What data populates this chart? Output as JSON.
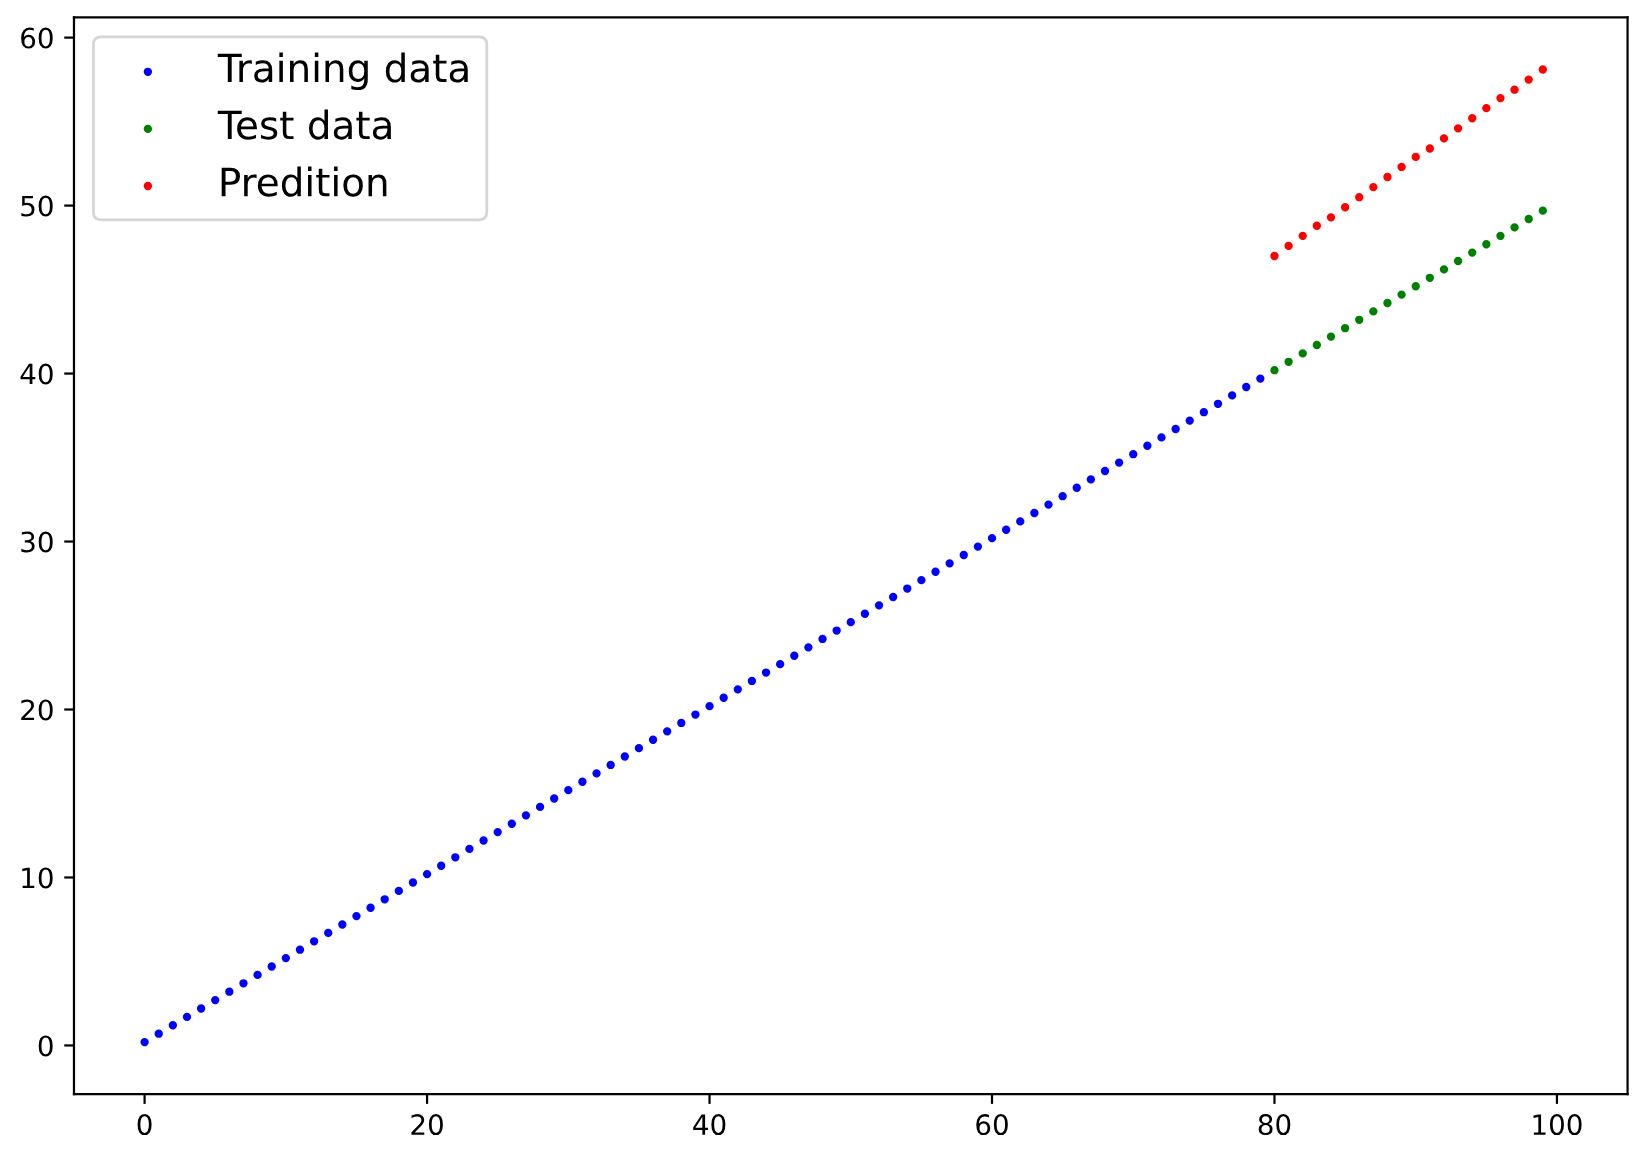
{
  "chart_data": {
    "type": "scatter",
    "legend": "top left",
    "marker": "circle",
    "grid": false,
    "xlim": [
      -5,
      105
    ],
    "ylim": [
      -2.9,
      61.2
    ],
    "xticks": [
      0,
      20,
      40,
      60,
      80,
      100
    ],
    "yticks": [
      0,
      10,
      20,
      30,
      40,
      50,
      60
    ],
    "series": [
      {
        "name": "Training data",
        "color": "#0000ff",
        "x": [
          0,
          1,
          2,
          3,
          4,
          5,
          6,
          7,
          8,
          9,
          10,
          11,
          12,
          13,
          14,
          15,
          16,
          17,
          18,
          19,
          20,
          21,
          22,
          23,
          24,
          25,
          26,
          27,
          28,
          29,
          30,
          31,
          32,
          33,
          34,
          35,
          36,
          37,
          38,
          39,
          40,
          41,
          42,
          43,
          44,
          45,
          46,
          47,
          48,
          49,
          50,
          51,
          52,
          53,
          54,
          55,
          56,
          57,
          58,
          59,
          60,
          61,
          62,
          63,
          64,
          65,
          66,
          67,
          68,
          69,
          70,
          71,
          72,
          73,
          74,
          75,
          76,
          77,
          78,
          79
        ],
        "values": [
          0.2,
          0.7,
          1.2,
          1.7,
          2.2,
          2.7,
          3.2,
          3.7,
          4.2,
          4.7,
          5.2,
          5.7,
          6.2,
          6.7,
          7.2,
          7.7,
          8.2,
          8.7,
          9.2,
          9.7,
          10.2,
          10.7,
          11.2,
          11.7,
          12.2,
          12.7,
          13.2,
          13.7,
          14.2,
          14.7,
          15.2,
          15.7,
          16.2,
          16.7,
          17.2,
          17.7,
          18.2,
          18.7,
          19.2,
          19.7,
          20.2,
          20.7,
          21.2,
          21.7,
          22.2,
          22.7,
          23.2,
          23.7,
          24.2,
          24.7,
          25.2,
          25.7,
          26.2,
          26.7,
          27.2,
          27.7,
          28.2,
          28.7,
          29.2,
          29.7,
          30.2,
          30.7,
          31.2,
          31.7,
          32.2,
          32.7,
          33.2,
          33.7,
          34.2,
          34.7,
          35.2,
          35.7,
          36.2,
          36.7,
          37.2,
          37.7,
          38.2,
          38.7,
          39.2,
          39.7
        ]
      },
      {
        "name": "Test data",
        "color": "#008000",
        "x": [
          80,
          81,
          82,
          83,
          84,
          85,
          86,
          87,
          88,
          89,
          90,
          91,
          92,
          93,
          94,
          95,
          96,
          97,
          98,
          99
        ],
        "values": [
          40.2,
          40.7,
          41.2,
          41.7,
          42.2,
          42.7,
          43.2,
          43.7,
          44.2,
          44.7,
          45.2,
          45.7,
          46.2,
          46.7,
          47.2,
          47.7,
          48.2,
          48.7,
          49.2,
          49.7
        ]
      },
      {
        "name": "Predition",
        "color": "#ff0000",
        "x": [
          80,
          81,
          82,
          83,
          84,
          85,
          86,
          87,
          88,
          89,
          90,
          91,
          92,
          93,
          94,
          95,
          96,
          97,
          98,
          99
        ],
        "values": [
          47.0,
          47.6,
          48.2,
          48.8,
          49.3,
          49.9,
          50.5,
          51.1,
          51.7,
          52.3,
          52.9,
          53.4,
          54.0,
          54.6,
          55.2,
          55.8,
          56.4,
          56.9,
          57.5,
          58.1
        ]
      }
    ]
  }
}
